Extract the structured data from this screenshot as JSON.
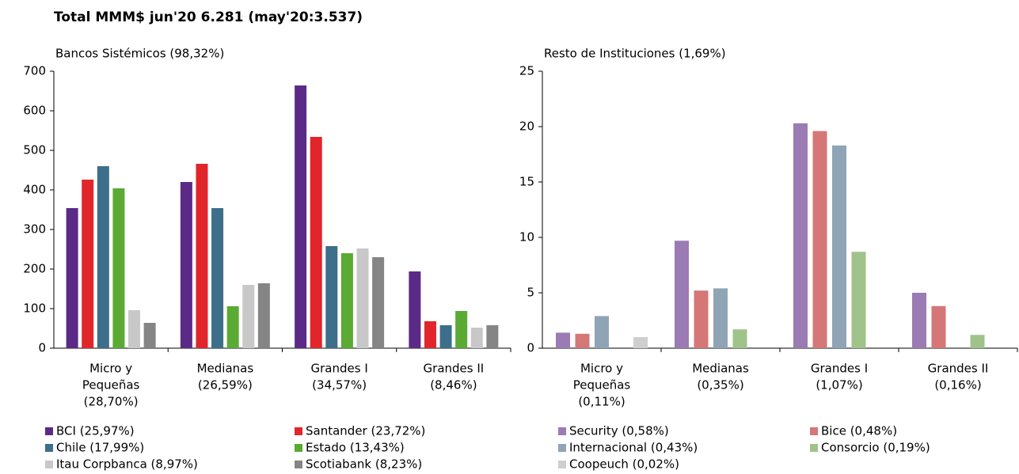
{
  "title": "Total MMM$ jun'20  6.281 (may'20:3.537)",
  "chart_data": [
    {
      "type": "bar",
      "title": "Bancos Sistémicos (98,32%)",
      "categories": [
        [
          "Micro y",
          "Pequeñas",
          "(28,70%)"
        ],
        [
          "Medianas",
          "(26,59%)"
        ],
        [
          "Grandes I",
          "(34,57%)"
        ],
        [
          "Grandes II",
          "(8,46%)"
        ]
      ],
      "series": [
        {
          "name": "BCI (25,97%)",
          "color": "#5b2a86",
          "values": [
            354,
            420,
            664,
            194
          ]
        },
        {
          "name": "Santander (23,72%)",
          "color": "#e0262b",
          "values": [
            426,
            466,
            534,
            68
          ]
        },
        {
          "name": "Chile (17,99%)",
          "color": "#3d6e8a",
          "values": [
            460,
            354,
            258,
            58
          ]
        },
        {
          "name": "Estado (13,43%)",
          "color": "#5aaa34",
          "values": [
            404,
            106,
            240,
            94
          ]
        },
        {
          "name": "Itau Corpbanca (8,97%)",
          "color": "#c8c8c8",
          "values": [
            96,
            160,
            252,
            52
          ]
        },
        {
          "name": "Scotiabank (8,23%)",
          "color": "#858585",
          "values": [
            64,
            164,
            230,
            58
          ]
        }
      ],
      "ylim": [
        0,
        700
      ],
      "yticks": [
        0,
        100,
        200,
        300,
        400,
        500,
        600,
        700
      ],
      "grid": false
    },
    {
      "type": "bar",
      "title": "Resto de Instituciones (1,69%)",
      "categories": [
        [
          "Micro y",
          "Pequeñas",
          "(0,11%)"
        ],
        [
          "Medianas",
          "(0,35%)"
        ],
        [
          "Grandes I",
          "(1,07%)"
        ],
        [
          "Grandes II",
          "(0,16%)"
        ]
      ],
      "series": [
        {
          "name": "Security (0,58%)",
          "color": "#9b7bb3",
          "values": [
            1.4,
            9.7,
            20.3,
            5.0
          ]
        },
        {
          "name": "Bice (0,48%)",
          "color": "#d57777",
          "values": [
            1.3,
            5.2,
            19.6,
            3.8
          ]
        },
        {
          "name": "Internacional (0,43%)",
          "color": "#8fa5b5",
          "values": [
            2.9,
            5.4,
            18.3,
            0
          ]
        },
        {
          "name": "Consorcio (0,19%)",
          "color": "#9fc38a",
          "values": [
            0,
            1.7,
            8.7,
            1.2
          ]
        },
        {
          "name": "Coopeuch (0,02%)",
          "color": "#cfcfcf",
          "values": [
            1.0,
            0,
            0,
            0
          ]
        }
      ],
      "ylim": [
        0,
        25
      ],
      "yticks": [
        0,
        5,
        10,
        15,
        20,
        25
      ],
      "grid": false
    }
  ]
}
